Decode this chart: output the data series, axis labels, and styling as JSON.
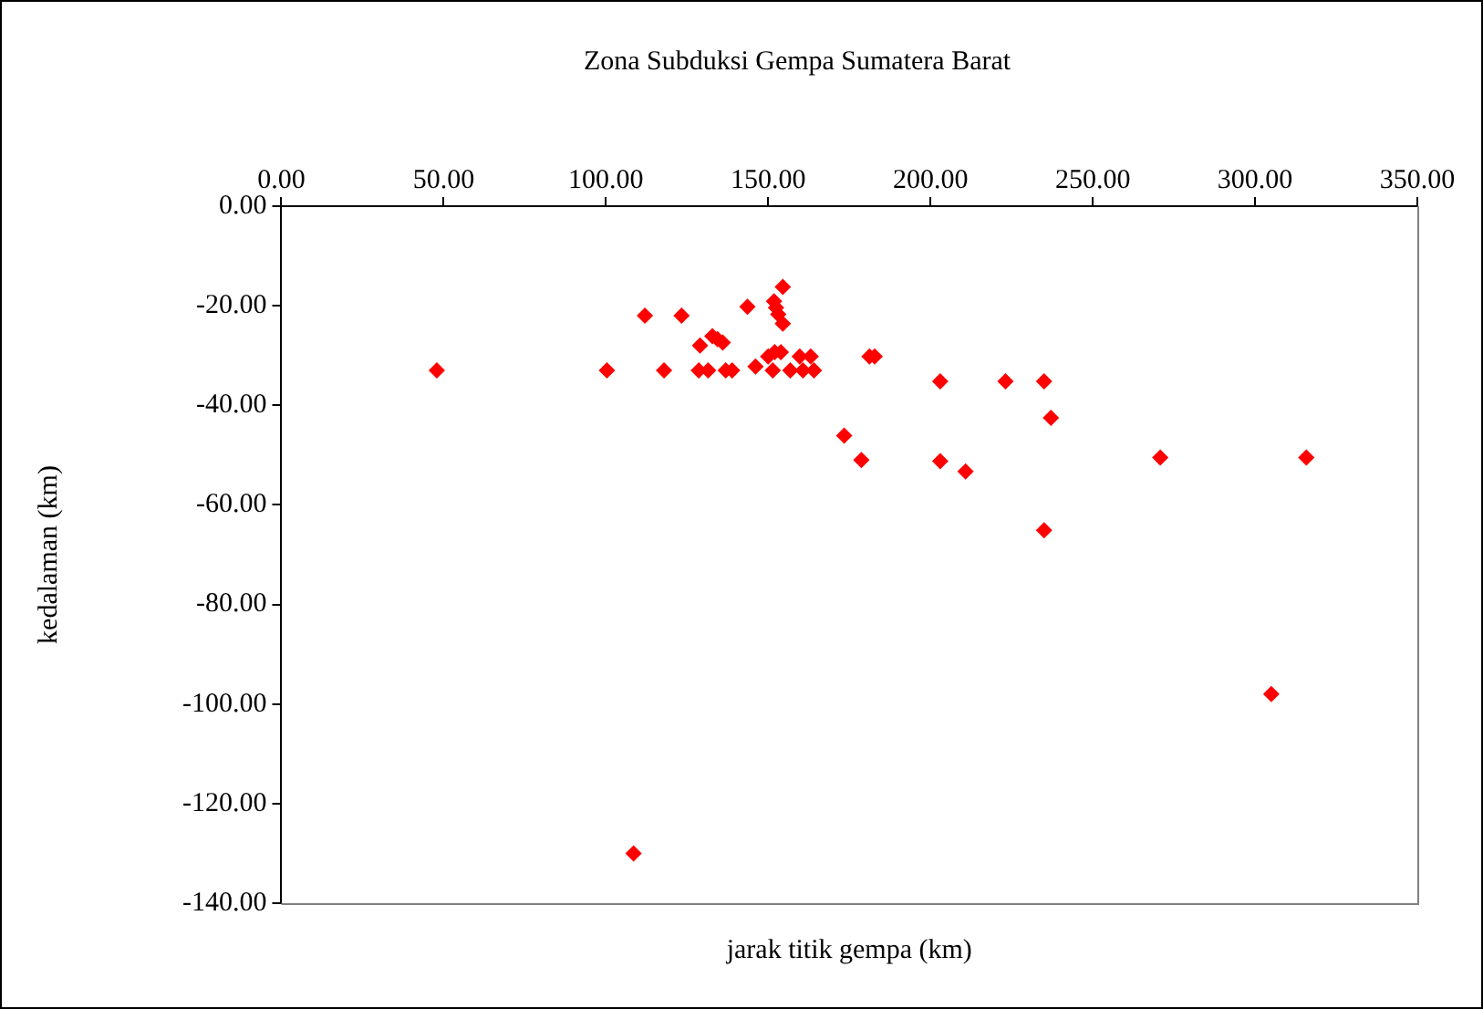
{
  "chart_data": {
    "type": "scatter",
    "title": "Zona Subduksi Gempa Sumatera Barat",
    "xlabel": "jarak titik gempa (km)",
    "ylabel": "kedalaman (km)",
    "x": [
      47.9,
      100.3,
      112,
      123.3,
      117.9,
      129,
      128.6,
      131.5,
      132.8,
      134.4,
      136,
      136.9,
      138.9,
      143.6,
      146.1,
      151.4,
      154.5,
      151.8,
      152.4,
      153.1,
      154.5,
      150,
      152.9,
      153.9,
      152,
      156.8,
      159.7,
      163.1,
      160.7,
      164.1,
      181.2,
      182.8,
      173.4,
      178.7,
      203,
      223.1,
      235,
      237.1,
      203,
      210.8,
      270.8,
      315.8,
      235,
      108.5,
      305
    ],
    "series": [
      {
        "color": "#ff0000",
        "values": [
          -33,
          -33,
          -22,
          -22,
          -33,
          -28,
          -33,
          -33,
          -26.1,
          -26.7,
          -27.4,
          -33,
          -33,
          -20.2,
          -32.2,
          -33,
          -16.2,
          -19.1,
          -20.4,
          -21.7,
          -23.6,
          -30.2,
          null,
          -29.3,
          -29.3,
          -33,
          -30.2,
          -30.2,
          -33,
          -33,
          -30.2,
          -30.2,
          -46.1,
          -51,
          -35.2,
          -35.2,
          -35.2,
          -42.5,
          -51.2,
          -53.3,
          -50.5,
          -50.5,
          -65.1,
          -130,
          -98
        ]
      }
    ],
    "xlim": [
      0,
      350
    ],
    "xticks": [
      {
        "value": 0,
        "label": "0.00"
      },
      {
        "value": 50,
        "label": "50.00"
      },
      {
        "value": 100,
        "label": "100.00"
      },
      {
        "value": 150,
        "label": "150.00"
      },
      {
        "value": 200,
        "label": "200.00"
      },
      {
        "value": 250,
        "label": "250.00"
      },
      {
        "value": 300,
        "label": "300.00"
      },
      {
        "value": 350,
        "label": "350.00"
      }
    ],
    "ylim": [
      -140,
      0
    ],
    "yticks": [
      {
        "value": -140,
        "label": "-140.00"
      },
      {
        "value": -120,
        "label": "-120.00"
      },
      {
        "value": -100,
        "label": "-100.00"
      },
      {
        "value": -80,
        "label": "-80.00"
      },
      {
        "value": -60,
        "label": "-60.00"
      },
      {
        "value": -40,
        "label": "-40.00"
      },
      {
        "value": -20,
        "label": "-20.00"
      },
      {
        "value": 0,
        "label": "0.00"
      }
    ],
    "grid": false,
    "legend": false,
    "marker": "diamond"
  }
}
